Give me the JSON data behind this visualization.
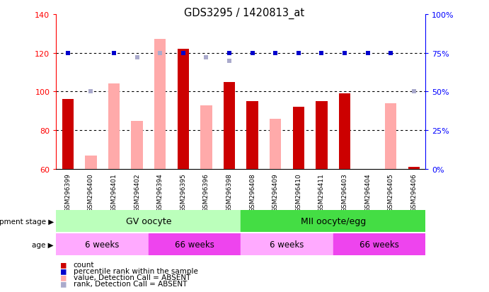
{
  "title": "GDS3295 / 1420813_at",
  "samples": [
    "GSM296399",
    "GSM296400",
    "GSM296401",
    "GSM296402",
    "GSM296394",
    "GSM296395",
    "GSM296396",
    "GSM296398",
    "GSM296408",
    "GSM296409",
    "GSM296410",
    "GSM296411",
    "GSM296403",
    "GSM296404",
    "GSM296405",
    "GSM296406"
  ],
  "count_values": [
    96,
    null,
    null,
    null,
    null,
    122,
    null,
    105,
    95,
    null,
    92,
    95,
    99,
    null,
    null,
    61
  ],
  "count_absent": [
    null,
    67,
    104,
    85,
    127,
    null,
    93,
    null,
    null,
    86,
    null,
    null,
    null,
    null,
    94,
    null
  ],
  "rank_pct_values": [
    75,
    null,
    75,
    null,
    null,
    75,
    null,
    75,
    75,
    75,
    75,
    75,
    75,
    75,
    75,
    null
  ],
  "rank_pct_absent": [
    null,
    50,
    null,
    72,
    75,
    null,
    72,
    70,
    null,
    null,
    null,
    null,
    null,
    null,
    null,
    50
  ],
  "ylim_left": [
    60,
    140
  ],
  "ylim_right": [
    0,
    100
  ],
  "yticks_left": [
    60,
    80,
    100,
    120,
    140
  ],
  "yticks_right": [
    0,
    25,
    50,
    75,
    100
  ],
  "ytick_labels_right": [
    "0%",
    "25%",
    "50%",
    "75%",
    "100%"
  ],
  "color_count": "#cc0000",
  "color_count_absent": "#ffaaaa",
  "color_rank": "#0000cc",
  "color_rank_absent": "#aaaacc",
  "bar_width": 0.5,
  "dev_stage_colors": [
    "#aaffaa",
    "#44cc44"
  ],
  "dev_stage_labels": [
    "GV oocyte",
    "MII oocyte/egg"
  ],
  "age_colors": [
    "#ffaaff",
    "#ee44ee",
    "#ffaaff",
    "#ee44ee"
  ],
  "age_labels": [
    "6 weeks",
    "66 weeks",
    "6 weeks",
    "66 weeks"
  ]
}
